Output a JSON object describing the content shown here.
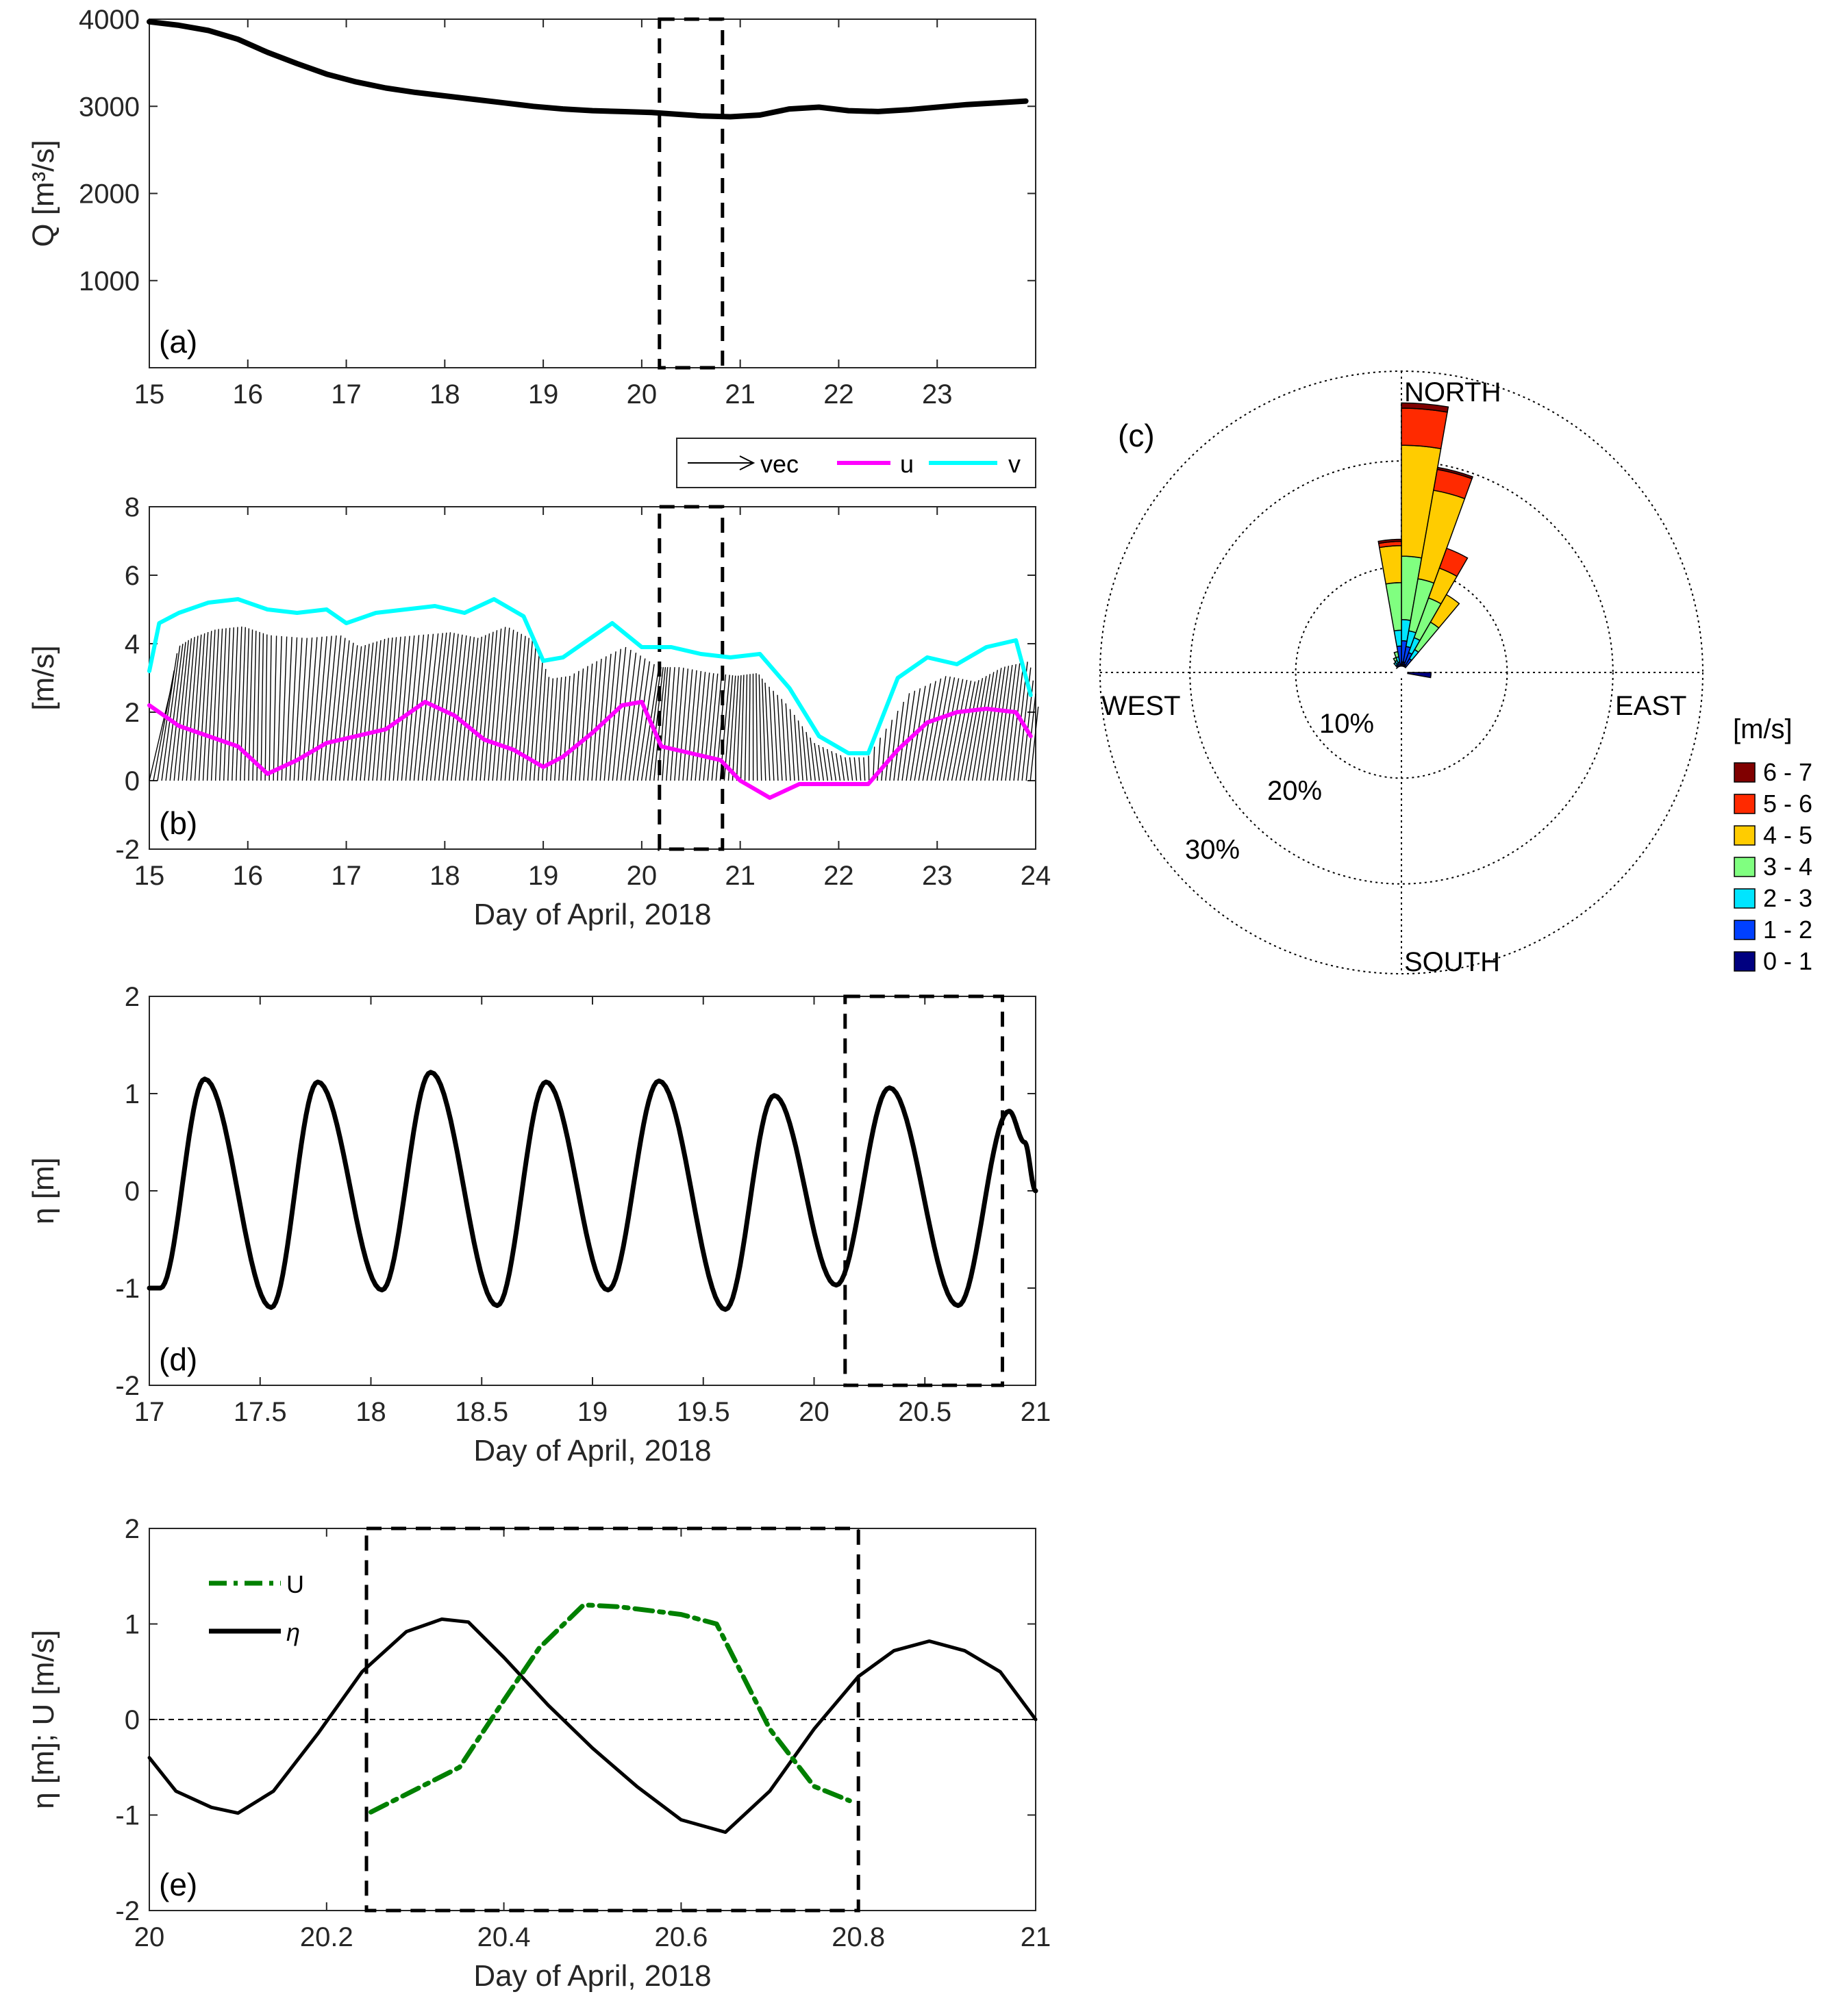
{
  "chart_data": [
    {
      "id": "a",
      "type": "line",
      "panel_label": "(a)",
      "ylabel": "Q [m³/s]",
      "xlabel": "",
      "xlim": [
        15,
        24
      ],
      "ylim": [
        0,
        4000
      ],
      "xticks": [
        15,
        16,
        17,
        18,
        19,
        20,
        21,
        22,
        23
      ],
      "yticks": [
        1000,
        2000,
        3000,
        4000
      ],
      "series": [
        {
          "name": "Q",
          "color": "#000000",
          "x": [
            15,
            15.3,
            15.6,
            15.9,
            16.2,
            16.5,
            16.8,
            17.1,
            17.4,
            17.7,
            18.0,
            18.3,
            18.6,
            18.9,
            19.2,
            19.5,
            19.8,
            20.1,
            20.35,
            20.6,
            20.9,
            21.2,
            21.5,
            21.8,
            22.1,
            22.4,
            22.7,
            23.0,
            23.3,
            23.6,
            23.9
          ],
          "y": [
            3970,
            3930,
            3870,
            3770,
            3620,
            3490,
            3370,
            3280,
            3210,
            3160,
            3120,
            3080,
            3040,
            3000,
            2970,
            2950,
            2940,
            2930,
            2910,
            2890,
            2880,
            2900,
            2970,
            2990,
            2950,
            2940,
            2960,
            2990,
            3020,
            3040,
            3060
          ]
        }
      ],
      "box": {
        "x": [
          20.18,
          20.82
        ],
        "y": [
          0,
          4000
        ]
      }
    },
    {
      "id": "b",
      "type": "line",
      "panel_label": "(b)",
      "ylabel": "[m/s]",
      "xlabel": "Day of April, 2018",
      "xlim": [
        15,
        24
      ],
      "ylim": [
        -2,
        8
      ],
      "xticks": [
        15,
        16,
        17,
        18,
        19,
        20,
        21,
        22,
        23,
        24
      ],
      "yticks": [
        -2,
        0,
        2,
        4,
        6,
        8
      ],
      "legend": [
        "vec",
        "u",
        "v"
      ],
      "series": [
        {
          "name": "u",
          "color": "#ff00ff",
          "x": [
            15.0,
            15.3,
            15.6,
            15.9,
            16.2,
            16.5,
            16.8,
            17.1,
            17.4,
            17.8,
            18.1,
            18.4,
            18.7,
            19.0,
            19.2,
            19.5,
            19.8,
            20.0,
            20.2,
            20.5,
            20.8,
            21.0,
            21.3,
            21.6,
            21.9,
            22.3,
            22.6,
            22.9,
            23.2,
            23.5,
            23.8,
            23.95
          ],
          "y": [
            2.2,
            1.6,
            1.3,
            1.0,
            0.2,
            0.6,
            1.1,
            1.3,
            1.5,
            2.3,
            1.9,
            1.2,
            0.9,
            0.4,
            0.7,
            1.4,
            2.2,
            2.3,
            1.0,
            0.8,
            0.6,
            0.0,
            -0.5,
            -0.1,
            -0.1,
            -0.1,
            0.9,
            1.7,
            2.0,
            2.1,
            2.0,
            1.3
          ]
        },
        {
          "name": "v",
          "color": "#00ffff",
          "x": [
            15.0,
            15.1,
            15.3,
            15.6,
            15.9,
            16.2,
            16.5,
            16.8,
            17.0,
            17.3,
            17.6,
            17.9,
            18.2,
            18.5,
            18.8,
            19.0,
            19.2,
            19.5,
            19.7,
            20.0,
            20.3,
            20.6,
            20.9,
            21.2,
            21.5,
            21.8,
            22.1,
            22.3,
            22.6,
            22.9,
            23.2,
            23.5,
            23.8,
            23.95
          ],
          "y": [
            3.2,
            4.6,
            4.9,
            5.2,
            5.3,
            5.0,
            4.9,
            5.0,
            4.6,
            4.9,
            5.0,
            5.1,
            4.9,
            5.3,
            4.8,
            3.5,
            3.6,
            4.2,
            4.6,
            3.9,
            3.9,
            3.7,
            3.6,
            3.7,
            2.7,
            1.3,
            0.8,
            0.8,
            3.0,
            3.6,
            3.4,
            3.9,
            4.1,
            2.5
          ]
        }
      ],
      "box": {
        "x": [
          20.18,
          20.82
        ],
        "y": [
          -2,
          8
        ]
      }
    },
    {
      "id": "c",
      "type": "pie",
      "subtype": "wind-rose",
      "panel_label": "(c)",
      "directions": [
        "NORTH",
        "EAST",
        "SOUTH",
        "WEST"
      ],
      "radial_labels": [
        "10%",
        "20%",
        "30%"
      ],
      "radial_values": [
        10,
        20,
        30
      ],
      "legend_title": "[m/s]",
      "speed_bins": [
        "6 - 7",
        "5 - 6",
        "4 - 5",
        "3 - 4",
        "2 - 3",
        "1 - 2",
        "0 - 1"
      ],
      "bin_colors": [
        "#800000",
        "#ff2a00",
        "#ffcc00",
        "#80ff80",
        "#00e5ff",
        "#0040ff",
        "#000080"
      ],
      "sector_width_deg": 10,
      "sectors": [
        {
          "dir": 5,
          "cum": [
            1.0,
            3.0,
            5.0,
            11.0,
            21.5,
            25.0,
            25.5
          ]
        },
        {
          "dir": 15,
          "cum": [
            1.0,
            2.5,
            4.0,
            9.0,
            17.5,
            19.5,
            19.7
          ]
        },
        {
          "dir": 25,
          "cum": [
            0.8,
            2.0,
            3.5,
            7.5,
            10.5,
            12.5
          ]
        },
        {
          "dir": 35,
          "cum": [
            0.6,
            1.5,
            2.5,
            5.5,
            8.5
          ]
        },
        {
          "dir": 355,
          "cum": [
            0.8,
            2.5,
            4.0,
            8.5,
            12.0,
            12.4,
            12.6
          ]
        },
        {
          "dir": 345,
          "cum": [
            0.5,
            1.0,
            1.5,
            2.0
          ]
        },
        {
          "dir": 335,
          "cum": [
            0.4,
            0.9,
            1.2,
            1.5
          ]
        },
        {
          "dir": 325,
          "cum": [
            0.4,
            0.8,
            1.1
          ]
        },
        {
          "dir": 95,
          "cum": [
            2.8
          ]
        },
        {
          "dir": 315,
          "cum": [
            0.3,
            0.6
          ]
        }
      ]
    },
    {
      "id": "d",
      "type": "line",
      "panel_label": "(d)",
      "ylabel": "η [m]",
      "xlabel": "Day of April, 2018",
      "xlim": [
        17,
        21
      ],
      "ylim": [
        -2,
        2
      ],
      "xticks": [
        17,
        17.5,
        18,
        18.5,
        19,
        19.5,
        20,
        20.5,
        21
      ],
      "xtick_labels": [
        "17",
        "17.5",
        "18",
        "18.5",
        "19",
        "19.5",
        "20",
        "20.5",
        "21"
      ],
      "yticks": [
        -2,
        -1,
        0,
        1,
        2
      ],
      "series": [
        {
          "name": "η",
          "color": "#000000",
          "x": [
            17.0,
            17.05,
            17.25,
            17.55,
            17.76,
            18.05,
            18.27,
            18.57,
            18.79,
            19.07,
            19.3,
            19.6,
            19.82,
            20.1,
            20.34,
            20.65,
            20.88,
            20.95,
            21.0
          ],
          "y": [
            -1.0,
            -1.0,
            1.15,
            -1.2,
            1.12,
            -1.02,
            1.22,
            -1.18,
            1.12,
            -1.02,
            1.13,
            -1.22,
            0.98,
            -0.97,
            1.06,
            -1.18,
            0.82,
            0.5,
            0.0
          ]
        }
      ],
      "box": {
        "x": [
          20.14,
          20.85
        ],
        "y": [
          -2,
          2
        ]
      }
    },
    {
      "id": "e",
      "type": "line",
      "panel_label": "(e)",
      "ylabel": "η [m]; U [m/s]",
      "xlabel": "Day of April, 2018",
      "xlim": [
        20,
        21
      ],
      "ylim": [
        -2,
        2
      ],
      "xticks": [
        20,
        20.2,
        20.4,
        20.6,
        20.8,
        21
      ],
      "xtick_labels": [
        "20",
        "20.2",
        "20.4",
        "20.6",
        "20.8",
        "21"
      ],
      "yticks": [
        -2,
        -1,
        0,
        1,
        2
      ],
      "legend": [
        "U",
        "η"
      ],
      "series": [
        {
          "name": "U",
          "color": "#008000",
          "style": "dash-dot",
          "x": [
            20.25,
            20.35,
            20.4,
            20.44,
            20.49,
            20.53,
            20.6,
            20.64,
            20.7,
            20.75,
            20.79
          ],
          "y": [
            -0.97,
            -0.5,
            0.2,
            0.75,
            1.2,
            1.18,
            1.1,
            1.0,
            -0.1,
            -0.7,
            -0.85
          ]
        },
        {
          "name": "η",
          "color": "#000000",
          "style": "solid",
          "x": [
            20.0,
            20.03,
            20.07,
            20.1,
            20.14,
            20.19,
            20.24,
            20.29,
            20.33,
            20.36,
            20.4,
            20.45,
            20.5,
            20.55,
            20.6,
            20.65,
            20.7,
            20.75,
            20.8,
            20.84,
            20.88,
            20.92,
            20.96,
            21.0
          ],
          "y": [
            -0.4,
            -0.75,
            -0.92,
            -0.98,
            -0.75,
            -0.15,
            0.5,
            0.92,
            1.05,
            1.02,
            0.65,
            0.15,
            -0.3,
            -0.7,
            -1.05,
            -1.18,
            -0.75,
            -0.1,
            0.45,
            0.72,
            0.82,
            0.72,
            0.5,
            0.0
          ]
        }
      ],
      "zero_line": true,
      "box": {
        "x": [
          20.245,
          20.8
        ],
        "y": [
          -2,
          2
        ]
      }
    }
  ]
}
